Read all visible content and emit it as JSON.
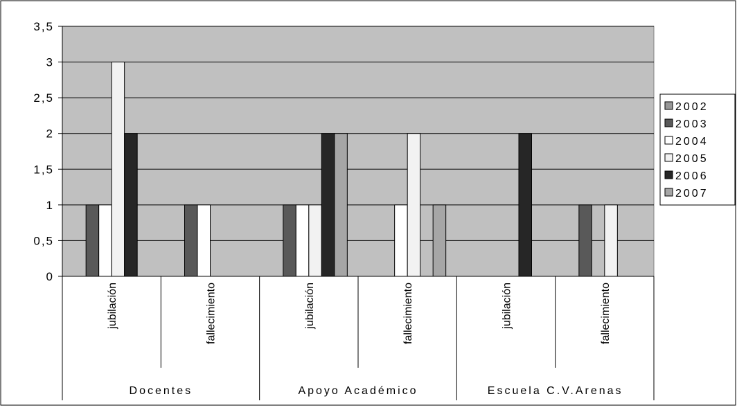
{
  "chart_data": {
    "type": "bar",
    "groups": [
      "Docentes",
      "Apoyo Académico",
      "Escuela C.V.Arenas"
    ],
    "categories": [
      "jubilación",
      "fallecimiento",
      "jubilación",
      "fallecimiento",
      "jubilación",
      "fallecimiento"
    ],
    "series": [
      {
        "name": "2002",
        "color": "#969696",
        "values": [
          0,
          0,
          0,
          0,
          0,
          0
        ]
      },
      {
        "name": "2003",
        "color": "#595959",
        "values": [
          1,
          1,
          1,
          0,
          0,
          1
        ]
      },
      {
        "name": "2004",
        "color": "#ffffff",
        "values": [
          1,
          1,
          1,
          1,
          0,
          0
        ]
      },
      {
        "name": "2005",
        "color": "#f2f2f2",
        "values": [
          3,
          0,
          1,
          2,
          0,
          1
        ]
      },
      {
        "name": "2006",
        "color": "#262626",
        "values": [
          2,
          0,
          2,
          0,
          2,
          0
        ]
      },
      {
        "name": "2007",
        "color": "#a6a6a6",
        "values": [
          0,
          0,
          2,
          1,
          0,
          0
        ]
      }
    ],
    "y_ticks": [
      "0",
      "0,5",
      "1",
      "1,5",
      "2",
      "2,5",
      "3",
      "3,5"
    ],
    "ylim": [
      0,
      3.5
    ],
    "plot_background": "#c0c0c0",
    "grid": true,
    "legend": "right"
  }
}
